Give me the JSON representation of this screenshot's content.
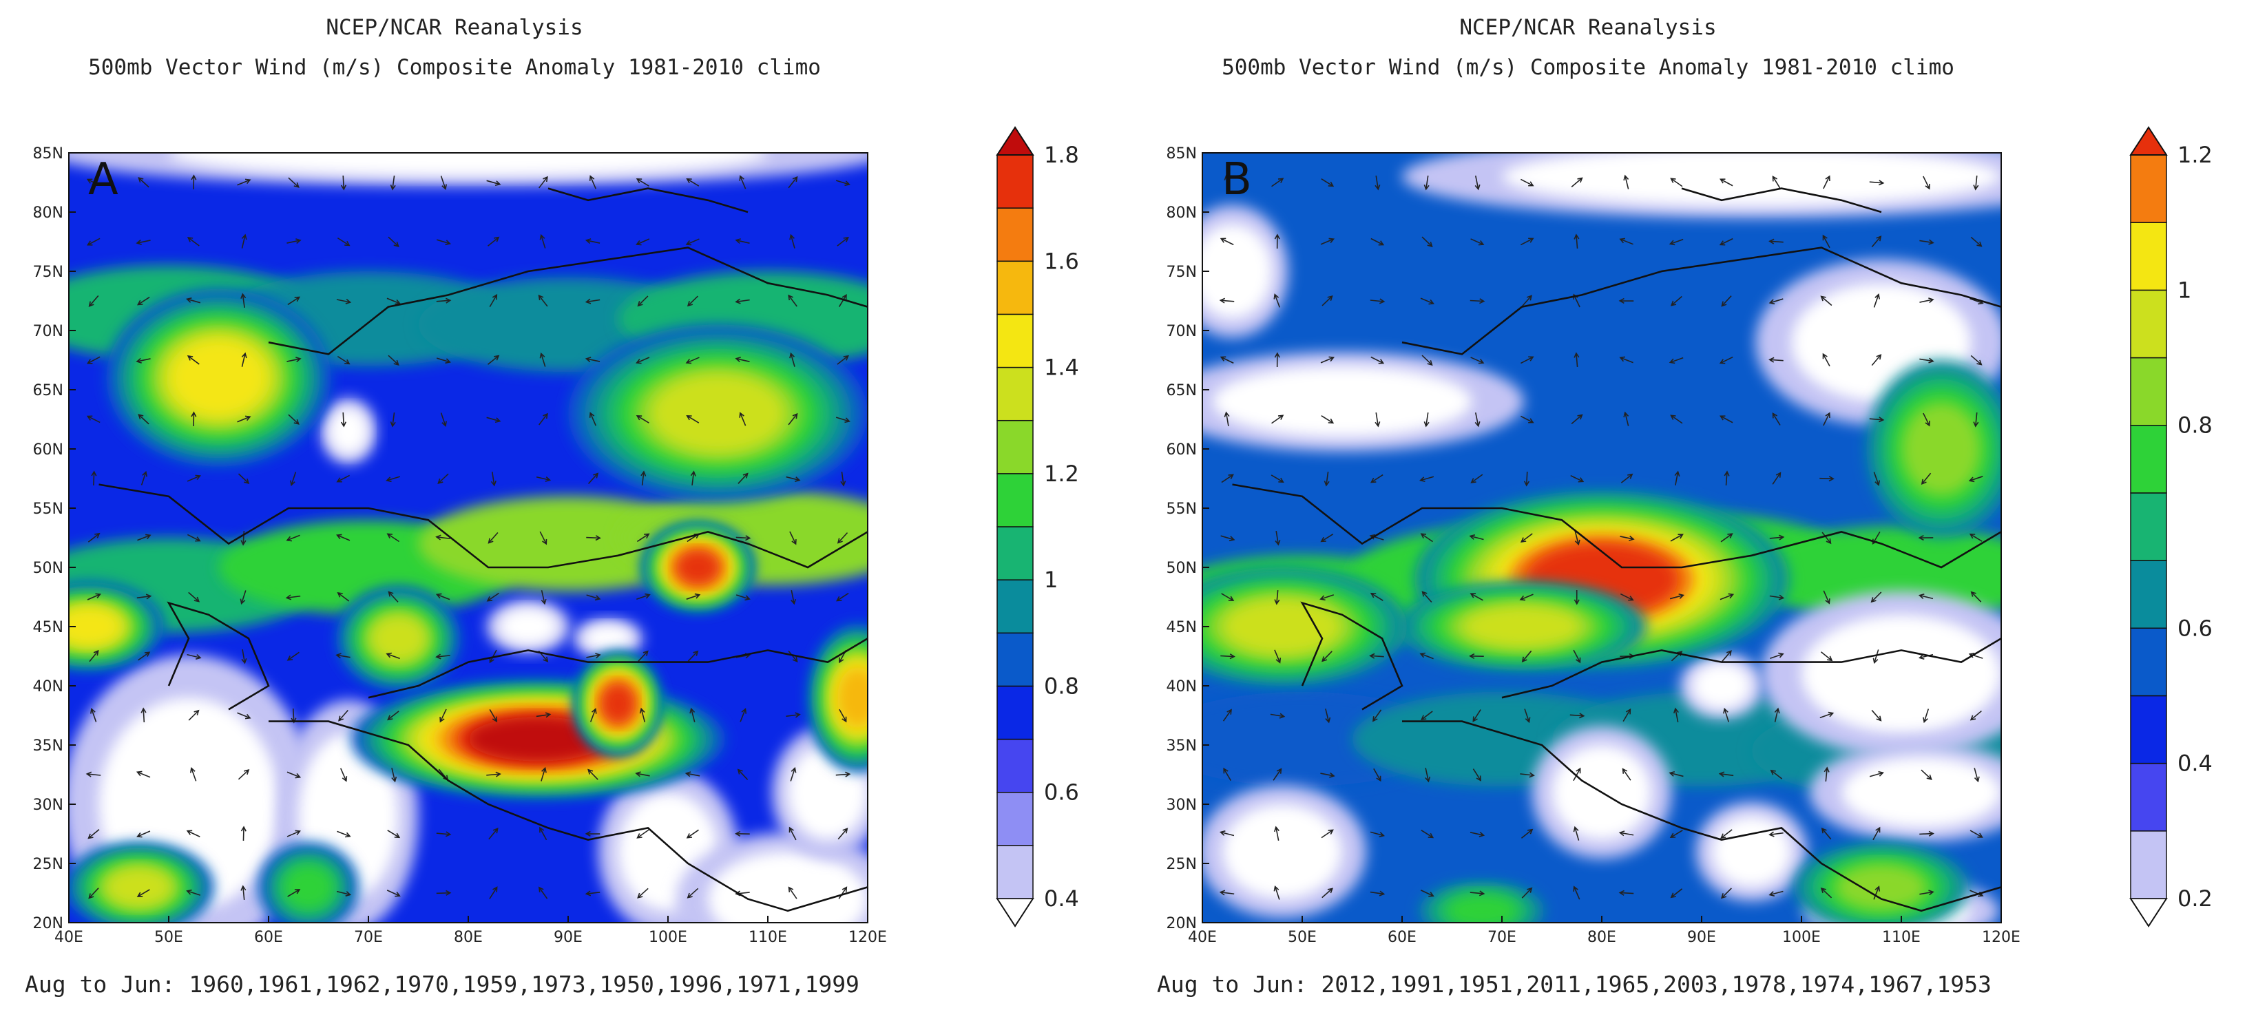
{
  "chart_data": [
    {
      "type": "heatmap",
      "panel_label": "A",
      "title": "NCEP/NCAR Reanalysis",
      "subtitle": "500mb Vector Wind (m/s) Composite Anomaly 1981-2010 climo",
      "footer": "Aug to Jun: 1960,1961,1962,1970,1959,1973,1950,1996,1971,1999",
      "x_ticks": [
        "40E",
        "50E",
        "60E",
        "70E",
        "80E",
        "90E",
        "100E",
        "110E",
        "120E"
      ],
      "y_ticks": [
        "20N",
        "25N",
        "30N",
        "35N",
        "40N",
        "45N",
        "50N",
        "55N",
        "60N",
        "65N",
        "70N",
        "75N",
        "80N",
        "85N"
      ],
      "xlim": [
        40,
        120
      ],
      "ylim": [
        20,
        85
      ],
      "colorbar_levels": [
        0.4,
        0.5,
        0.6,
        0.7,
        0.8,
        0.9,
        1.0,
        1.1,
        1.2,
        1.3,
        1.4,
        1.5,
        1.6,
        1.7,
        1.8
      ],
      "colorbar_labels": [
        "0.4",
        "0.6",
        "0.8",
        "1",
        "1.2",
        "1.4",
        "1.6",
        "1.8"
      ],
      "colorbar_colors": [
        "#ffffff",
        "#c4c4f4",
        "#8e8ef4",
        "#4646f0",
        "#0a28e6",
        "#0a5aca",
        "#0a8c9c",
        "#18b472",
        "#2ed238",
        "#8ad82a",
        "#cce01e",
        "#f4e612",
        "#f6b80e",
        "#f47c10",
        "#e6300c",
        "#c00c0c"
      ],
      "anomalies": [
        {
          "lon": 87,
          "lat": 35.5,
          "rx": 15,
          "ry": 4,
          "peak": 1.8
        },
        {
          "lon": 95,
          "lat": 38.5,
          "rx": 3.5,
          "ry": 3.5,
          "peak": 1.7
        },
        {
          "lon": 103,
          "lat": 50,
          "rx": 4.5,
          "ry": 3,
          "peak": 1.75
        },
        {
          "lon": 119,
          "lat": 39,
          "rx": 4,
          "ry": 5,
          "peak": 1.55
        },
        {
          "lon": 73,
          "lat": 44,
          "rx": 5,
          "ry": 3.5,
          "peak": 1.35
        },
        {
          "lon": 42,
          "lat": 45,
          "rx": 6,
          "ry": 3,
          "peak": 1.45
        },
        {
          "lon": 55,
          "lat": 66,
          "rx": 9,
          "ry": 6,
          "peak": 1.4
        },
        {
          "lon": 105,
          "lat": 63,
          "rx": 12,
          "ry": 6,
          "peak": 1.35
        },
        {
          "lon": 47,
          "lat": 23,
          "rx": 6,
          "ry": 3,
          "peak": 1.35
        },
        {
          "lon": 64,
          "lat": 23,
          "rx": 4,
          "ry": 3,
          "peak": 1.15
        }
      ],
      "series": [
        {
          "name": "anomaly band east",
          "lon": [
            40,
            60,
            80,
            100,
            120
          ],
          "lat": [
            48,
            49,
            51,
            53,
            52
          ],
          "values": [
            1.0,
            1.1,
            1.2,
            1.25,
            1.15
          ]
        },
        {
          "name": "anomaly band north",
          "lon": [
            40,
            60,
            80,
            100,
            120
          ],
          "lat": [
            72,
            71,
            71,
            70,
            72
          ],
          "values": [
            1.0,
            1.0,
            0.95,
            1.0,
            1.0
          ]
        }
      ],
      "minima": [
        {
          "lon": 52,
          "lat": 30,
          "rx": 9,
          "ry": 9
        },
        {
          "lon": 68,
          "lat": 29,
          "rx": 5,
          "ry": 7
        },
        {
          "lon": 86,
          "lat": 45,
          "rx": 3,
          "ry": 1.6
        },
        {
          "lon": 94,
          "lat": 44,
          "rx": 2.5,
          "ry": 1.2
        },
        {
          "lon": 100,
          "lat": 26,
          "rx": 5,
          "ry": 5
        },
        {
          "lon": 112,
          "lat": 22,
          "rx": 8,
          "ry": 4
        },
        {
          "lon": 116,
          "lat": 31,
          "rx": 4,
          "ry": 4
        },
        {
          "lon": 80,
          "lat": 85,
          "rx": 30,
          "ry": 2
        },
        {
          "lon": 68,
          "lat": 61.5,
          "rx": 2,
          "ry": 2
        }
      ]
    },
    {
      "type": "heatmap",
      "panel_label": "B",
      "title": "NCEP/NCAR Reanalysis",
      "subtitle": "500mb Vector Wind (m/s) Composite Anomaly 1981-2010 climo",
      "footer": "Aug to Jun: 2012,1991,1951,2011,1965,2003,1978,1974,1967,1953",
      "x_ticks": [
        "40E",
        "50E",
        "60E",
        "70E",
        "80E",
        "90E",
        "100E",
        "110E",
        "120E"
      ],
      "y_ticks": [
        "20N",
        "25N",
        "30N",
        "35N",
        "40N",
        "45N",
        "50N",
        "55N",
        "60N",
        "65N",
        "70N",
        "75N",
        "80N",
        "85N"
      ],
      "xlim": [
        40,
        120
      ],
      "ylim": [
        20,
        85
      ],
      "colorbar_levels": [
        0.2,
        0.3,
        0.4,
        0.5,
        0.6,
        0.7,
        0.8,
        0.9,
        1.0,
        1.1,
        1.2,
        1.3
      ],
      "colorbar_labels": [
        "0.2",
        "0.4",
        "0.6",
        "0.8",
        "1",
        "1.2"
      ],
      "colorbar_colors": [
        "#ffffff",
        "#c4c4f4",
        "#4646f0",
        "#0a28e6",
        "#0a5aca",
        "#0a8c9c",
        "#18b472",
        "#2ed238",
        "#8ad82a",
        "#cce01e",
        "#f4e612",
        "#f47c10",
        "#e6300c"
      ],
      "anomalies": [
        {
          "lon": 80,
          "lat": 49,
          "rx": 15,
          "ry": 6,
          "peak": 1.35
        },
        {
          "lon": 72,
          "lat": 45,
          "rx": 10,
          "ry": 3,
          "peak": 1.05
        },
        {
          "lon": 48,
          "lat": 45,
          "rx": 10,
          "ry": 4,
          "peak": 1.0
        },
        {
          "lon": 114,
          "lat": 60,
          "rx": 6,
          "ry": 6,
          "peak": 0.9
        },
        {
          "lon": 108,
          "lat": 23,
          "rx": 7,
          "ry": 3,
          "peak": 0.95
        },
        {
          "lon": 68,
          "lat": 21,
          "rx": 5,
          "ry": 2,
          "peak": 0.85
        }
      ],
      "series": [
        {
          "name": "anomaly band central",
          "lon": [
            40,
            60,
            80,
            100,
            120
          ],
          "lat": [
            46,
            48,
            51,
            50,
            49
          ],
          "values": [
            0.8,
            0.85,
            0.9,
            0.85,
            0.75
          ]
        },
        {
          "name": "anomaly band south",
          "lon": [
            40,
            60,
            80,
            100,
            120
          ],
          "lat": [
            36,
            35,
            36,
            35,
            34
          ],
          "values": [
            0.55,
            0.6,
            0.65,
            0.65,
            0.55
          ]
        }
      ],
      "minima": [
        {
          "lon": 110,
          "lat": 41,
          "rx": 10,
          "ry": 5
        },
        {
          "lon": 108,
          "lat": 69,
          "rx": 9,
          "ry": 5
        },
        {
          "lon": 95,
          "lat": 83,
          "rx": 25,
          "ry": 2.5
        },
        {
          "lon": 54,
          "lat": 64,
          "rx": 13,
          "ry": 3
        },
        {
          "lon": 43,
          "lat": 75,
          "rx": 4,
          "ry": 4
        },
        {
          "lon": 48,
          "lat": 26,
          "rx": 6,
          "ry": 4
        },
        {
          "lon": 80,
          "lat": 31,
          "rx": 5,
          "ry": 4
        },
        {
          "lon": 92,
          "lat": 40,
          "rx": 3,
          "ry": 2
        },
        {
          "lon": 112,
          "lat": 31,
          "rx": 8,
          "ry": 3
        },
        {
          "lon": 95,
          "lat": 26,
          "rx": 4,
          "ry": 3
        },
        {
          "lon": 110,
          "lat": 21,
          "rx": 7,
          "ry": 2
        }
      ]
    }
  ]
}
